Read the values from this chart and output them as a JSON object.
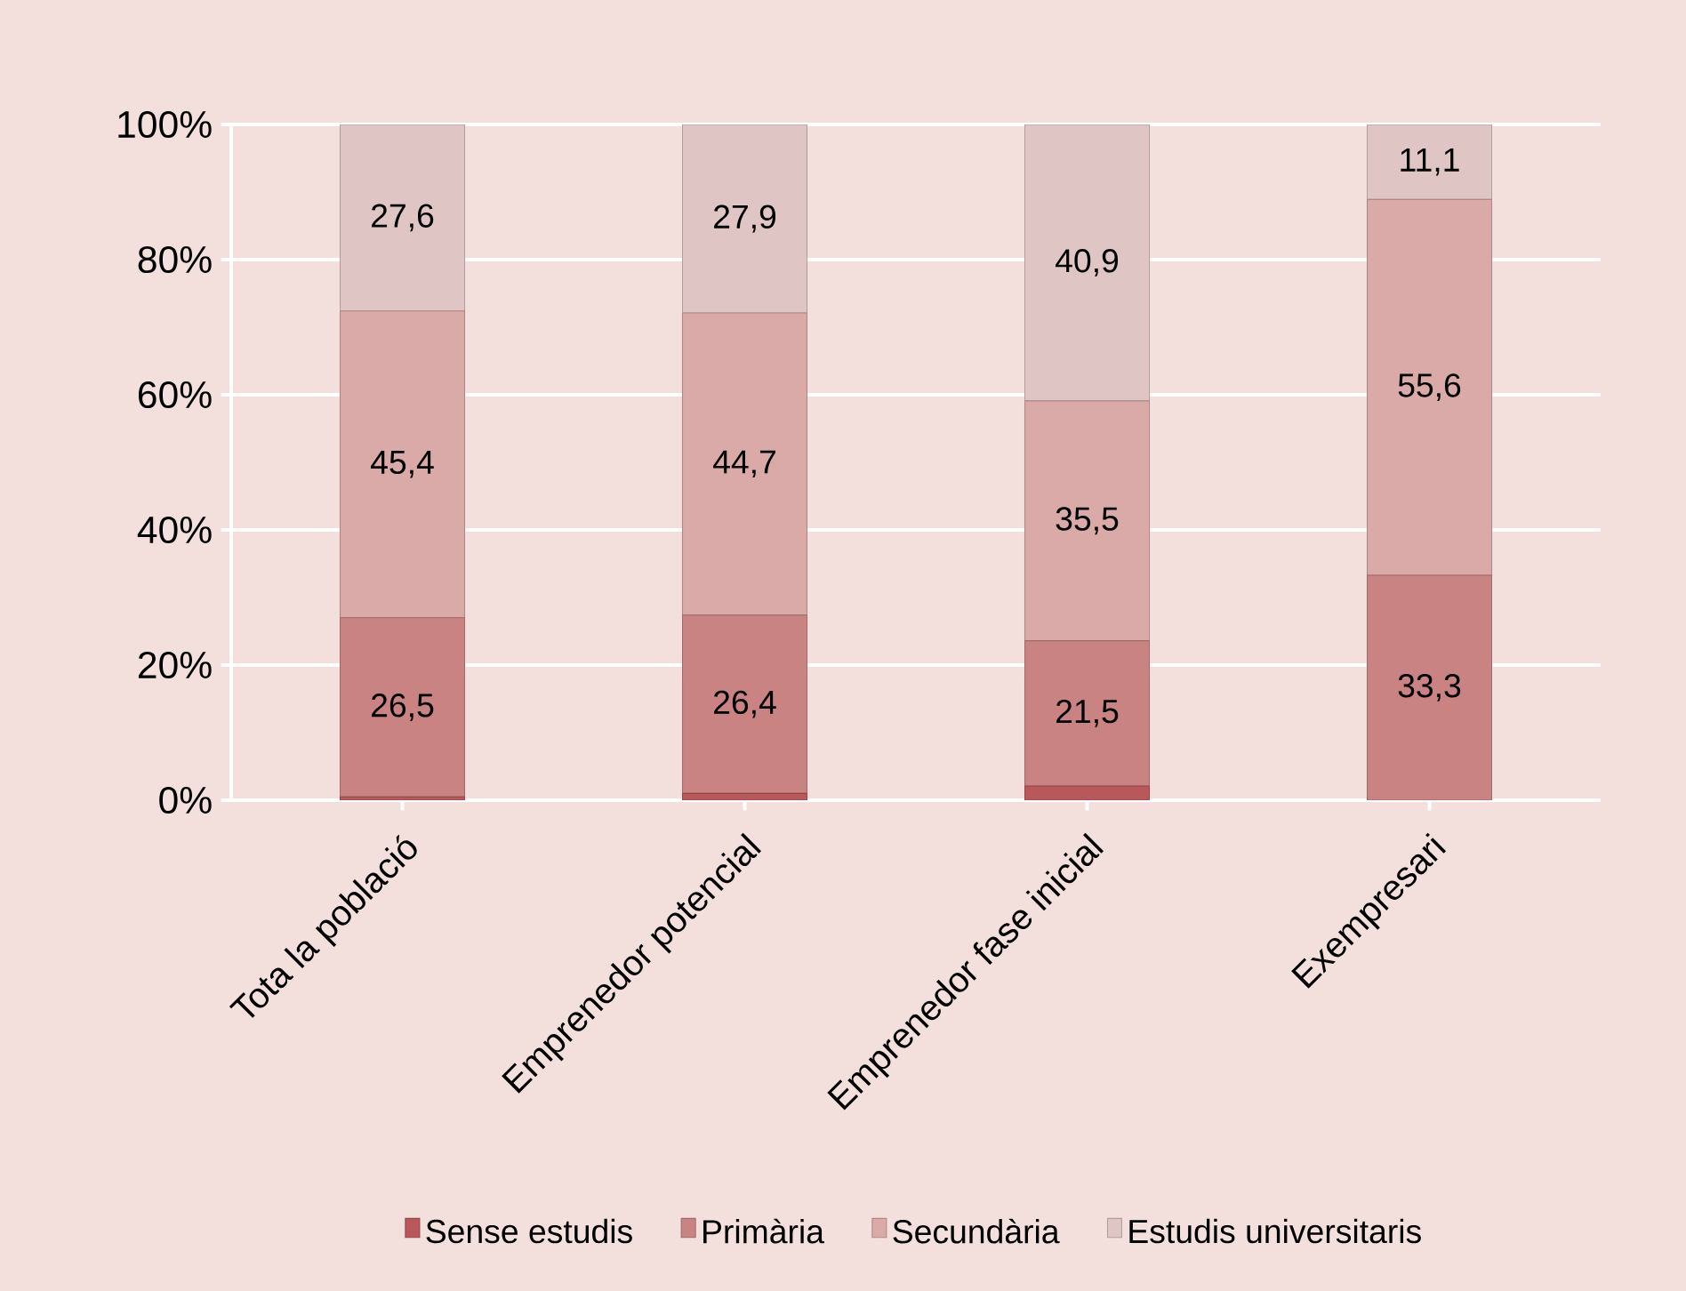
{
  "chart_data": {
    "type": "bar",
    "stacked": true,
    "categories": [
      "Tota la població",
      "Emprenedor potencial",
      "Emprenedor fase inicial",
      "Exempresari"
    ],
    "series": [
      {
        "name": "Sense estudis",
        "color": "#b9585a",
        "values": [
          0.5,
          1.0,
          2.1,
          0
        ]
      },
      {
        "name": "Primària",
        "color": "#c98382",
        "values": [
          26.5,
          26.4,
          21.5,
          33.3
        ],
        "value_labels": [
          "26,5",
          "26,4",
          "21,5",
          "33,3"
        ]
      },
      {
        "name": "Secundària",
        "color": "#d9aaa7",
        "values": [
          45.4,
          44.7,
          35.5,
          55.6
        ],
        "value_labels": [
          "45,4",
          "44,7",
          "35,5",
          "55,6"
        ]
      },
      {
        "name": "Estudis universitaris",
        "color": "#dfc6c5",
        "values": [
          27.6,
          27.9,
          40.9,
          11.1
        ],
        "value_labels": [
          "27,6",
          "27,9",
          "40,9",
          "11,1"
        ]
      }
    ],
    "ylim": [
      0,
      100
    ],
    "yticks": [
      {
        "value": 0,
        "label": "0%"
      },
      {
        "value": 20,
        "label": "20%"
      },
      {
        "value": 40,
        "label": "40%"
      },
      {
        "value": 60,
        "label": "60%"
      },
      {
        "value": 80,
        "label": "80%"
      },
      {
        "value": 100,
        "label": "100%"
      }
    ],
    "grid": "y",
    "legend": "bottom"
  }
}
